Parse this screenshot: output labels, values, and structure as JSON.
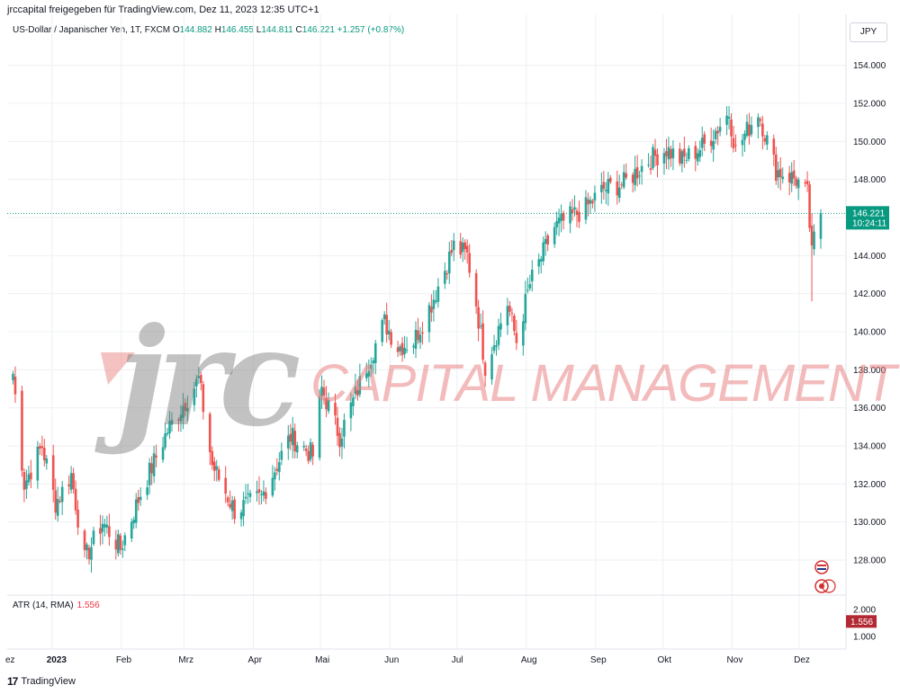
{
  "header": {
    "shared_by": "jrccapital freigegeben für TradingView.com, Dez 11, 2023 12:35 UTC+1",
    "symbol": "US-Dollar / Japanischer Yen, 1T, FXCM",
    "ohlc": {
      "o_label": "O",
      "o": "144.882",
      "h_label": "H",
      "h": "146.455",
      "l_label": "L",
      "l": "144.811",
      "c_label": "C",
      "c": "146.221",
      "change": "+1.257 (+0.87%)"
    },
    "currency_button": "JPY"
  },
  "price_badge": {
    "price": "146.221",
    "countdown": "10:24:11"
  },
  "atr": {
    "label": "ATR (14, RMA)",
    "value": "1.556",
    "badge": "1.556",
    "ticks": [
      "2.000",
      "1.000"
    ]
  },
  "watermark": {
    "logo": "jrc",
    "text": "CAPITAL MANAGEMENT"
  },
  "footer": {
    "brand": "TradingView",
    "logo_mark": "17"
  },
  "colors": {
    "up": "#26a69a",
    "down": "#ef5350",
    "badge": "#089981",
    "atr_badge": "#b22833",
    "grid": "#eef0f3"
  },
  "chart_data": {
    "type": "candlestick",
    "y_axis": {
      "min": 126,
      "max": 155,
      "ticks": [
        "154.000",
        "152.000",
        "150.000",
        "148.000",
        "146.000",
        "144.000",
        "142.000",
        "140.000",
        "138.000",
        "136.000",
        "134.000",
        "132.000",
        "130.000",
        "128.000"
      ],
      "tick_values": [
        154,
        152,
        150,
        148,
        146,
        144,
        142,
        140,
        138,
        136,
        134,
        132,
        130,
        128
      ]
    },
    "x_axis": {
      "labels": [
        "ez",
        "2023",
        "Feb",
        "Mrz",
        "Apr",
        "Mai",
        "Jun",
        "Jul",
        "Aug",
        "Sep",
        "Okt",
        "Nov",
        "Dez"
      ]
    },
    "grid": true,
    "last_price": 146.221,
    "anchors": [
      {
        "x": "2022-12-15",
        "y": 137.8
      },
      {
        "x": "2022-12-20",
        "y": 132.0
      },
      {
        "x": "2022-12-28",
        "y": 134.0
      },
      {
        "x": "2023-01-03",
        "y": 131.0
      },
      {
        "x": "2023-01-10",
        "y": 132.5
      },
      {
        "x": "2023-01-16",
        "y": 128.0
      },
      {
        "x": "2023-01-24",
        "y": 130.0
      },
      {
        "x": "2023-02-01",
        "y": 128.6
      },
      {
        "x": "2023-02-10",
        "y": 131.5
      },
      {
        "x": "2023-02-22",
        "y": 134.8
      },
      {
        "x": "2023-03-08",
        "y": 137.5
      },
      {
        "x": "2023-03-14",
        "y": 133.0
      },
      {
        "x": "2023-03-24",
        "y": 130.6
      },
      {
        "x": "2023-04-05",
        "y": 131.3
      },
      {
        "x": "2023-04-18",
        "y": 134.5
      },
      {
        "x": "2023-04-28",
        "y": 133.5
      },
      {
        "x": "2023-05-02",
        "y": 137.0
      },
      {
        "x": "2023-05-10",
        "y": 134.5
      },
      {
        "x": "2023-05-22",
        "y": 138.2
      },
      {
        "x": "2023-05-30",
        "y": 140.5
      },
      {
        "x": "2023-06-05",
        "y": 139.2
      },
      {
        "x": "2023-06-12",
        "y": 139.5
      },
      {
        "x": "2023-06-20",
        "y": 141.5
      },
      {
        "x": "2023-06-30",
        "y": 144.5
      },
      {
        "x": "2023-07-06",
        "y": 144.0
      },
      {
        "x": "2023-07-10",
        "y": 141.5
      },
      {
        "x": "2023-07-14",
        "y": 138.2
      },
      {
        "x": "2023-07-24",
        "y": 141.5
      },
      {
        "x": "2023-07-28",
        "y": 139.5
      },
      {
        "x": "2023-08-03",
        "y": 142.5
      },
      {
        "x": "2023-08-14",
        "y": 145.5
      },
      {
        "x": "2023-08-28",
        "y": 146.5
      },
      {
        "x": "2023-09-05",
        "y": 147.5
      },
      {
        "x": "2023-09-14",
        "y": 147.8
      },
      {
        "x": "2023-09-25",
        "y": 149.0
      },
      {
        "x": "2023-10-03",
        "y": 149.6
      },
      {
        "x": "2023-10-10",
        "y": 149.0
      },
      {
        "x": "2023-10-20",
        "y": 149.8
      },
      {
        "x": "2023-10-31",
        "y": 151.5
      },
      {
        "x": "2023-11-03",
        "y": 149.5
      },
      {
        "x": "2023-11-13",
        "y": 151.6
      },
      {
        "x": "2023-11-21",
        "y": 148.5
      },
      {
        "x": "2023-11-30",
        "y": 148.0
      },
      {
        "x": "2023-12-05",
        "y": 147.2
      },
      {
        "x": "2023-12-07",
        "y": 144.0
      },
      {
        "x": "2023-12-08",
        "y": 144.9
      },
      {
        "x": "2023-12-11",
        "y": 146.221
      }
    ],
    "atr_series": {
      "name": "ATR (14, RMA)",
      "last": 1.556,
      "range": [
        0.6,
        2.4
      ]
    }
  }
}
